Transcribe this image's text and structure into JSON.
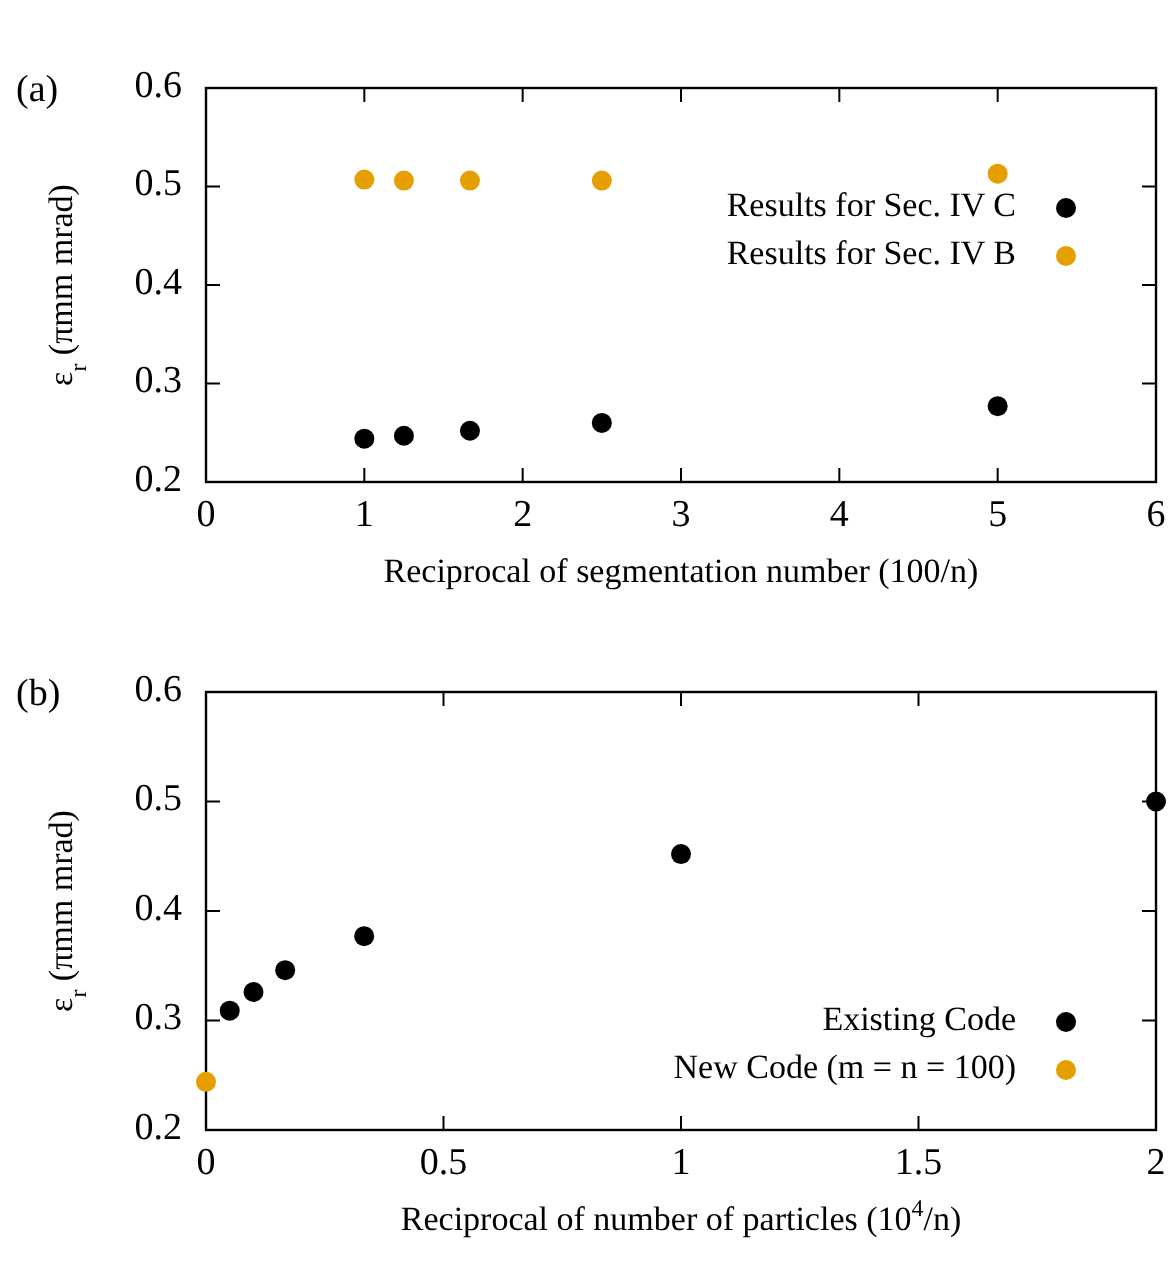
{
  "chart_data": [
    {
      "type": "scatter",
      "title": "(a)",
      "xlabel": "Reciprocal of segmentation number (100/n)",
      "ylabel": "ε$_{r}$ (πmm mrad)",
      "xlim": [
        0,
        6
      ],
      "xticks": [
        0,
        1,
        2,
        3,
        4,
        5,
        6
      ],
      "ylim": [
        0.2,
        0.6
      ],
      "yticks": [
        0.2,
        0.3,
        0.4,
        0.5,
        0.6
      ],
      "legend": "top right",
      "marker": "circle",
      "grid": false,
      "series": [
        {
          "name": "Results for Sec. IV C",
          "color": "#000000",
          "x": [
            1,
            1.25,
            1.667,
            2.5,
            5
          ],
          "values": [
            0.244,
            0.247,
            0.252,
            0.26,
            0.277
          ]
        },
        {
          "name": "Results for Sec. IV B",
          "color": "#e69f00",
          "x": [
            1,
            1.25,
            1.667,
            2.5,
            5
          ],
          "values": [
            0.507,
            0.506,
            0.506,
            0.506,
            0.513
          ]
        }
      ]
    },
    {
      "type": "scatter",
      "title": "(b)",
      "xlabel": "Reciprocal of number of particles (10$^{4}$/n)",
      "ylabel": "ε$_{r}$ (πmm mrad)",
      "xlim": [
        0,
        2
      ],
      "xticks": [
        0,
        0.5,
        1,
        1.5,
        2
      ],
      "ylim": [
        0.2,
        0.6
      ],
      "yticks": [
        0.2,
        0.3,
        0.4,
        0.5,
        0.6
      ],
      "legend": "bottom right",
      "marker": "circle",
      "grid": false,
      "series": [
        {
          "name": "Existing Code",
          "color": "#000000",
          "x": [
            0.05,
            0.1,
            0.1667,
            0.333,
            1,
            2
          ],
          "values": [
            0.309,
            0.326,
            0.346,
            0.377,
            0.452,
            0.5
          ]
        },
        {
          "name": "New Code (m = n = 100)",
          "color": "#e69f00",
          "x": [
            0
          ],
          "values": [
            0.244
          ]
        }
      ]
    }
  ]
}
